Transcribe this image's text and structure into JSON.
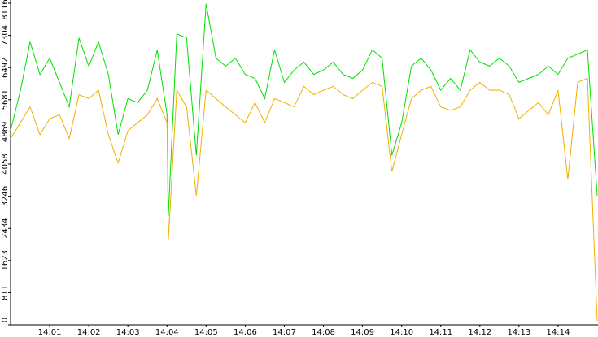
{
  "chart_data": {
    "type": "line",
    "x": [
      "14:00:00",
      "14:00:15",
      "14:00:30",
      "14:00:45",
      "14:01:00",
      "14:01:15",
      "14:01:30",
      "14:01:45",
      "14:02:00",
      "14:02:15",
      "14:02:30",
      "14:02:45",
      "14:03:00",
      "14:03:15",
      "14:03:30",
      "14:03:45",
      "14:04:00",
      "14:04:02",
      "14:04:15",
      "14:04:30",
      "14:04:45",
      "14:05:00",
      "14:05:15",
      "14:05:30",
      "14:05:45",
      "14:06:00",
      "14:06:15",
      "14:06:30",
      "14:06:45",
      "14:07:00",
      "14:07:15",
      "14:07:30",
      "14:07:45",
      "14:08:00",
      "14:08:15",
      "14:08:30",
      "14:08:45",
      "14:09:00",
      "14:09:15",
      "14:09:30",
      "14:09:45",
      "14:10:00",
      "14:10:15",
      "14:10:30",
      "14:10:45",
      "14:11:00",
      "14:11:15",
      "14:11:30",
      "14:11:45",
      "14:12:00",
      "14:12:15",
      "14:12:30",
      "14:12:45",
      "14:13:00",
      "14:13:15",
      "14:13:30",
      "14:13:45",
      "14:14:00",
      "14:14:15",
      "14:14:30",
      "14:14:45",
      "14:15:00"
    ],
    "series": [
      {
        "color": "#00e000",
        "values": [
          4900,
          5900,
          7140,
          6320,
          6730,
          6120,
          5500,
          7240,
          6530,
          7140,
          6320,
          4800,
          5710,
          5610,
          5920,
          6940,
          5300,
          2750,
          7340,
          7240,
          4280,
          8100,
          6730,
          6530,
          6730,
          6320,
          6220,
          5710,
          6940,
          6120,
          6430,
          6630,
          6320,
          6430,
          6630,
          6320,
          6220,
          6430,
          6940,
          6730,
          4280,
          5100,
          6530,
          6730,
          6430,
          5920,
          6220,
          5920,
          6940,
          6630,
          6530,
          6730,
          6530,
          6120,
          6220,
          6320,
          6530,
          6320,
          6730,
          6830,
          6940,
          3260
        ]
      },
      {
        "color": "#f0b000",
        "values": [
          4700,
          5100,
          5500,
          4800,
          5200,
          5300,
          4700,
          5810,
          5710,
          5920,
          4800,
          4080,
          4900,
          5100,
          5300,
          5710,
          5100,
          2140,
          5920,
          5500,
          3260,
          5920,
          5710,
          5500,
          5300,
          5100,
          5610,
          5100,
          5710,
          5610,
          5500,
          6020,
          5810,
          5920,
          6020,
          5810,
          5710,
          5920,
          6120,
          6020,
          3870,
          4800,
          5710,
          5920,
          6020,
          5500,
          5410,
          5500,
          5920,
          6120,
          5920,
          5920,
          5810,
          5200,
          5410,
          5610,
          5300,
          5920,
          3670,
          6120,
          6220,
          100
        ]
      }
    ],
    "xlim": [
      "14:00",
      "14:15"
    ],
    "xticks": [
      "14:01",
      "14:02",
      "14:03",
      "14:04",
      "14:05",
      "14:06",
      "14:07",
      "14:08",
      "14:09",
      "14:10",
      "14:11",
      "14:12",
      "14:13",
      "14:14"
    ],
    "ylim": [
      0,
      8116
    ],
    "yticks": [
      0,
      811,
      1623,
      2434,
      3246,
      4058,
      4869,
      5681,
      6492,
      7304,
      8116
    ]
  }
}
